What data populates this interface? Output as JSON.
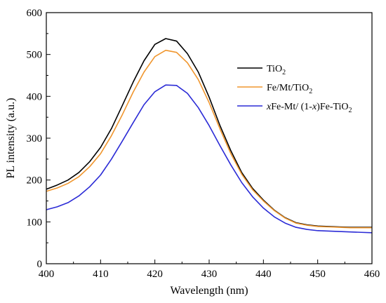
{
  "chart_data": {
    "type": "line",
    "xlabel": "Wavelength (nm)",
    "ylabel": "PL intensity (a.u.)",
    "xlim": [
      400,
      460
    ],
    "ylim": [
      0,
      600
    ],
    "xticks": [
      400,
      410,
      420,
      430,
      440,
      450,
      460
    ],
    "yticks": [
      0,
      100,
      200,
      300,
      400,
      500,
      600
    ],
    "grid": false,
    "legend_position": "right",
    "x": [
      400,
      402,
      404,
      406,
      408,
      410,
      412,
      414,
      416,
      418,
      420,
      422,
      424,
      426,
      428,
      430,
      432,
      434,
      436,
      438,
      440,
      442,
      444,
      446,
      448,
      450,
      452,
      454,
      456,
      458,
      460
    ],
    "series": [
      {
        "name": "TiO2",
        "legend": {
          "prefix": "",
          "base": "TiO",
          "sub": "2",
          "mid": "",
          "sub2": ""
        },
        "color": "#000000",
        "values": [
          178,
          188,
          200,
          218,
          244,
          278,
          323,
          378,
          434,
          485,
          524,
          538,
          532,
          502,
          458,
          398,
          330,
          270,
          218,
          180,
          152,
          128,
          110,
          98,
          93,
          90,
          89,
          88,
          87,
          87,
          87
        ]
      },
      {
        "name": "Fe/Mt/TiO2",
        "legend": {
          "prefix": "",
          "base": "Fe/Mt/TiO",
          "sub": "2",
          "mid": "",
          "sub2": ""
        },
        "color": "#f0962e",
        "values": [
          173,
          181,
          192,
          208,
          232,
          263,
          306,
          356,
          410,
          458,
          495,
          510,
          505,
          480,
          440,
          385,
          322,
          263,
          214,
          177,
          150,
          127,
          109,
          97,
          92,
          89,
          88,
          87,
          86,
          86,
          86
        ]
      },
      {
        "name": "xFe-Mt/ (1-x)Fe-TiO2",
        "legend": {
          "prefix": "x",
          "base": "Fe-Mt/ (1-",
          "sub": "",
          "mid": "x)Fe-TiO",
          "sub2": "2"
        },
        "color": "#2b2bd6",
        "values": [
          129,
          136,
          146,
          162,
          184,
          212,
          250,
          293,
          337,
          380,
          411,
          427,
          426,
          407,
          373,
          330,
          282,
          236,
          194,
          160,
          133,
          112,
          97,
          87,
          82,
          79,
          78,
          77,
          76,
          75,
          74
        ]
      }
    ]
  }
}
